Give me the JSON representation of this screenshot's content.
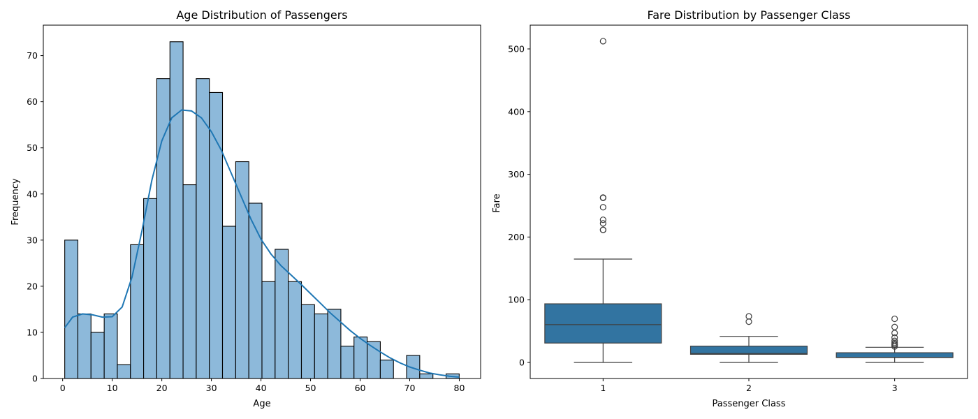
{
  "chart_data": [
    {
      "type": "bar",
      "subtype": "histogram",
      "title": "Age Distribution of Passengers",
      "xlabel": "Age",
      "ylabel": "Frequency",
      "xlim": [
        -3.9,
        84.3
      ],
      "ylim": [
        0,
        76.6
      ],
      "xticks": [
        0,
        10,
        20,
        30,
        40,
        50,
        60,
        70,
        80
      ],
      "yticks": [
        0,
        10,
        20,
        30,
        40,
        50,
        60,
        70
      ],
      "bin_edges": [
        0.42,
        3.07,
        5.72,
        8.38,
        11.03,
        13.68,
        16.33,
        18.98,
        21.64,
        24.29,
        26.94,
        29.59,
        32.24,
        34.9,
        37.55,
        40.2,
        42.85,
        45.5,
        48.16,
        50.81,
        53.46,
        56.11,
        58.76,
        61.42,
        64.07,
        66.72,
        69.37,
        72.02,
        74.68,
        77.33,
        79.98
      ],
      "values": [
        30,
        14,
        10,
        14,
        3,
        29,
        39,
        65,
        73,
        42,
        65,
        62,
        33,
        47,
        38,
        21,
        28,
        21,
        16,
        14,
        15,
        7,
        9,
        8,
        4,
        0,
        5,
        1,
        0,
        1
      ],
      "kde": {
        "x": [
          0.42,
          2,
          4,
          6,
          8,
          10,
          12,
          14,
          16,
          18,
          20,
          22,
          24,
          26,
          28,
          30,
          32,
          34,
          36,
          38,
          40,
          42,
          44,
          46,
          48,
          50,
          52,
          54,
          56,
          58,
          60,
          62,
          64,
          66,
          68,
          70,
          72,
          74,
          76,
          78,
          79.98
        ],
        "y": [
          11,
          13.3,
          14,
          13.8,
          13.3,
          13.4,
          15.5,
          22,
          32,
          43,
          51.5,
          56.5,
          58.2,
          58,
          56.5,
          53.5,
          49.5,
          44.5,
          39.5,
          34.5,
          30.2,
          27,
          24.5,
          22.5,
          20.5,
          18.4,
          16.3,
          14.2,
          12.3,
          10.4,
          8.7,
          7.2,
          5.8,
          4.5,
          3.4,
          2.5,
          1.8,
          1.2,
          0.8,
          0.5,
          0.3
        ]
      },
      "colors": {
        "bar_fill": "#8db9da",
        "bar_edge": "#000000",
        "kde_line": "#1f77b4"
      },
      "grid": false,
      "legend": "none"
    },
    {
      "type": "box",
      "title": "Fare Distribution by Passenger Class",
      "xlabel": "Passenger Class",
      "ylabel": "Fare",
      "ylim": [
        -25.6,
        537.9
      ],
      "yticks": [
        0,
        100,
        200,
        300,
        400,
        500
      ],
      "categories": [
        "1",
        "2",
        "3"
      ],
      "boxes": [
        {
          "category": "1",
          "min": 0,
          "q1": 30.92,
          "median": 60.29,
          "q3": 93.5,
          "max": 164.87,
          "outliers": [
            211.34,
            211.5,
            221.78,
            227.53,
            247.52,
            262.38,
            263.0,
            512.33
          ]
        },
        {
          "category": "2",
          "min": 0,
          "q1": 13.0,
          "median": 14.25,
          "q3": 26.0,
          "max": 41.58,
          "outliers": [
            65.0,
            73.5
          ]
        },
        {
          "category": "3",
          "min": 0,
          "q1": 7.75,
          "median": 8.05,
          "q3": 15.5,
          "max": 24.15,
          "outliers": [
            25.47,
            27.9,
            29.12,
            31.28,
            34.38,
            39.69,
            46.9,
            56.5,
            69.55
          ]
        }
      ],
      "colors": {
        "box_fill": "#3274a1",
        "line": "#3f3f3f"
      },
      "grid": false,
      "legend": "none"
    }
  ]
}
